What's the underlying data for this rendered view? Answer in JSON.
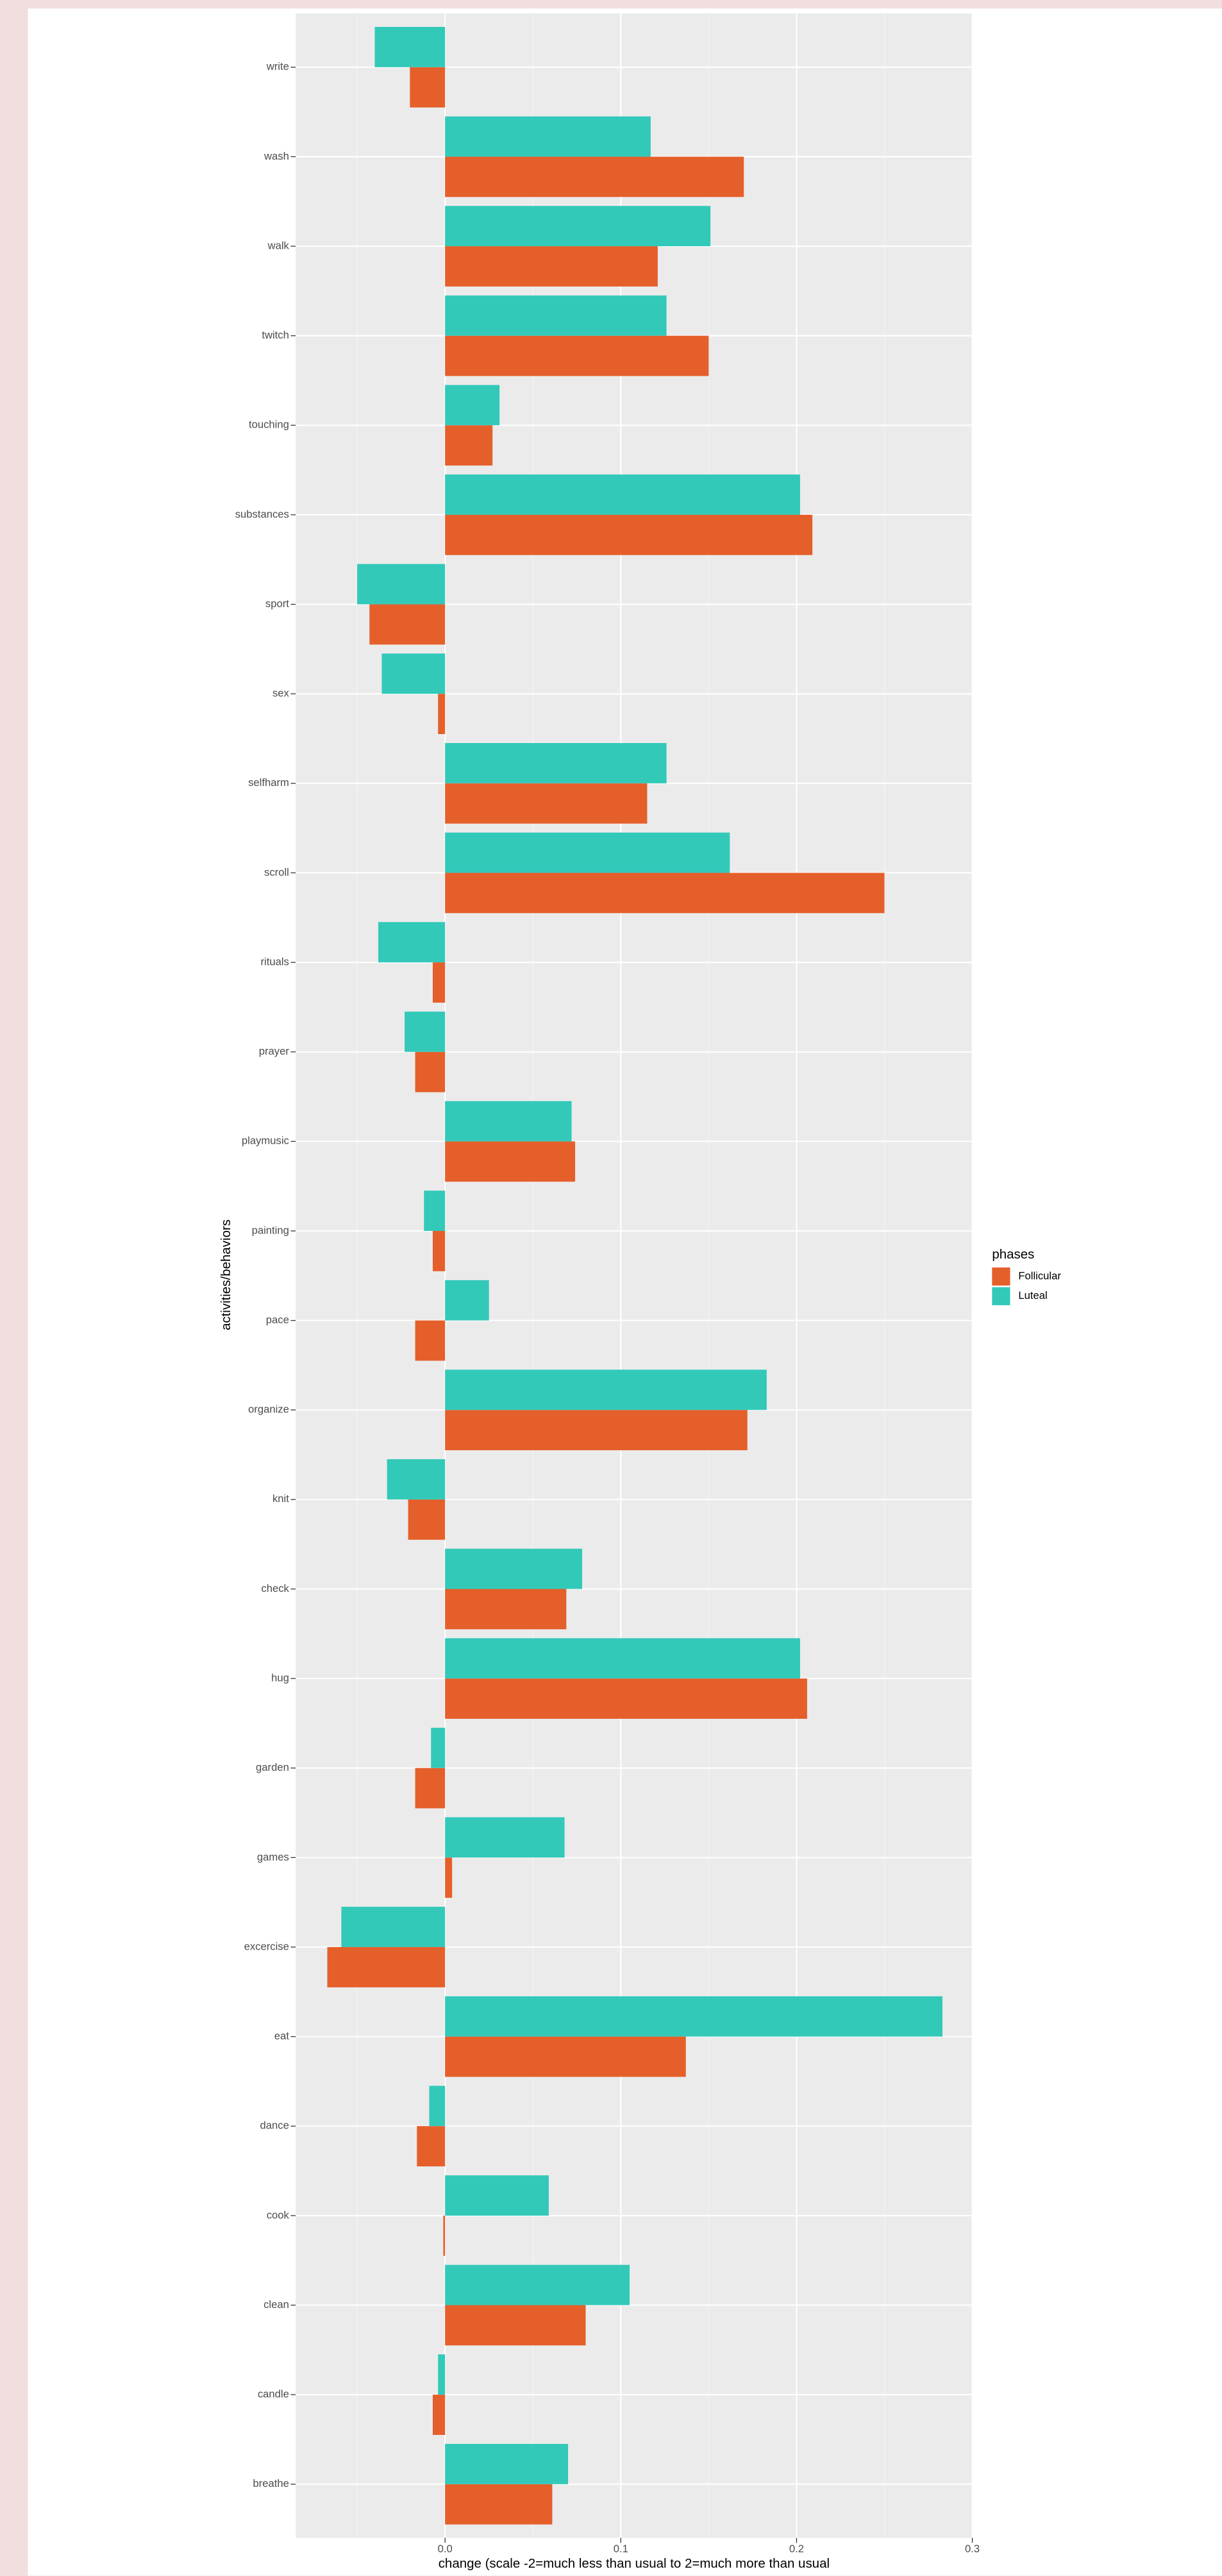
{
  "chart_data": {
    "type": "bar",
    "orientation": "horizontal",
    "xlabel": "change (scale -2=much less than usual to 2=much more than usual",
    "ylabel": "activities/behaviors",
    "legend_title": "phases",
    "legend_position": "right",
    "grid": true,
    "categories": [
      "write",
      "wash",
      "walk",
      "twitch",
      "touching",
      "substances",
      "sport",
      "sex",
      "selfharm",
      "scroll",
      "rituals",
      "prayer",
      "playmusic",
      "painting",
      "pace",
      "organize",
      "knit",
      "check",
      "hug",
      "garden",
      "games",
      "excercise",
      "eat",
      "dance",
      "cook",
      "clean",
      "candle",
      "breathe"
    ],
    "series": [
      {
        "name": "Follicular",
        "color": "#e55f2b",
        "values": [
          -0.02,
          0.17,
          0.121,
          0.15,
          0.027,
          0.209,
          -0.043,
          -0.004,
          0.115,
          0.25,
          -0.007,
          -0.017,
          0.074,
          -0.007,
          -0.017,
          0.172,
          -0.021,
          0.069,
          0.206,
          -0.017,
          0.004,
          -0.067,
          0.137,
          -0.016,
          -0.001,
          0.08,
          -0.007,
          0.061
        ]
      },
      {
        "name": "Luteal",
        "color": "#33c9b9",
        "values": [
          -0.04,
          0.117,
          0.151,
          0.126,
          0.031,
          0.202,
          -0.05,
          -0.036,
          0.126,
          0.162,
          -0.038,
          -0.023,
          0.072,
          -0.012,
          0.025,
          0.183,
          -0.033,
          0.078,
          0.202,
          -0.008,
          0.068,
          -0.059,
          0.283,
          -0.009,
          0.059,
          0.105,
          -0.004,
          0.07
        ]
      }
    ],
    "xlim": [
      -0.085,
      0.3
    ],
    "xticks": [
      {
        "value": 0,
        "label": "0.0"
      },
      0.1,
      0.2,
      0.3
    ]
  }
}
